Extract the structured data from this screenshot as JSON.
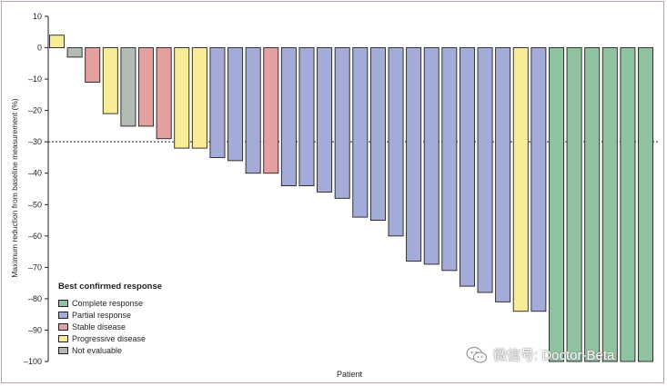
{
  "chart_data": {
    "type": "bar",
    "title": "",
    "xlabel": "Patient",
    "ylabel": "Maximum reduction from baseline measurement (%)",
    "ylim": [
      -100,
      10
    ],
    "yticks": [
      10,
      0,
      -10,
      -20,
      -30,
      -40,
      -50,
      -60,
      -70,
      -80,
      -90,
      -100
    ],
    "reference_line": -30,
    "grid": false,
    "legend_position": "bottom-left",
    "values": [
      4,
      -3,
      -11,
      -21,
      -25,
      -25,
      -29,
      -32,
      -32,
      -35,
      -36,
      -40,
      -40,
      -44,
      -44,
      -46,
      -48,
      -54,
      -55,
      -60,
      -68,
      -69,
      -71,
      -76,
      -78,
      -81,
      -84,
      -84,
      -100,
      -100,
      -100,
      -100,
      -100,
      -100
    ],
    "responses": [
      "PD",
      "NE",
      "SD",
      "PD",
      "NE",
      "SD",
      "SD",
      "PD",
      "PD",
      "PR",
      "PR",
      "PR",
      "SD",
      "PR",
      "PR",
      "PR",
      "PR",
      "PR",
      "PR",
      "PR",
      "PR",
      "PR",
      "PR",
      "PR",
      "PR",
      "PR",
      "PD",
      "PR",
      "CR",
      "CR",
      "CR",
      "CR",
      "CR",
      "CR"
    ]
  },
  "legend": {
    "title": "Best confirmed response",
    "items": [
      {
        "key": "CR",
        "label": "Complete response",
        "color": "#8fc3a0"
      },
      {
        "key": "PR",
        "label": "Partial response",
        "color": "#a3acd8"
      },
      {
        "key": "SD",
        "label": "Stable disease",
        "color": "#e49fa0"
      },
      {
        "key": "PD",
        "label": "Progressive disease",
        "color": "#f9ec97"
      },
      {
        "key": "NE",
        "label": "Not evaluable",
        "color": "#b3bbb5"
      }
    ]
  },
  "watermark": {
    "text": "微信号: Doctor-Beta",
    "icon": "wechat-icon"
  }
}
